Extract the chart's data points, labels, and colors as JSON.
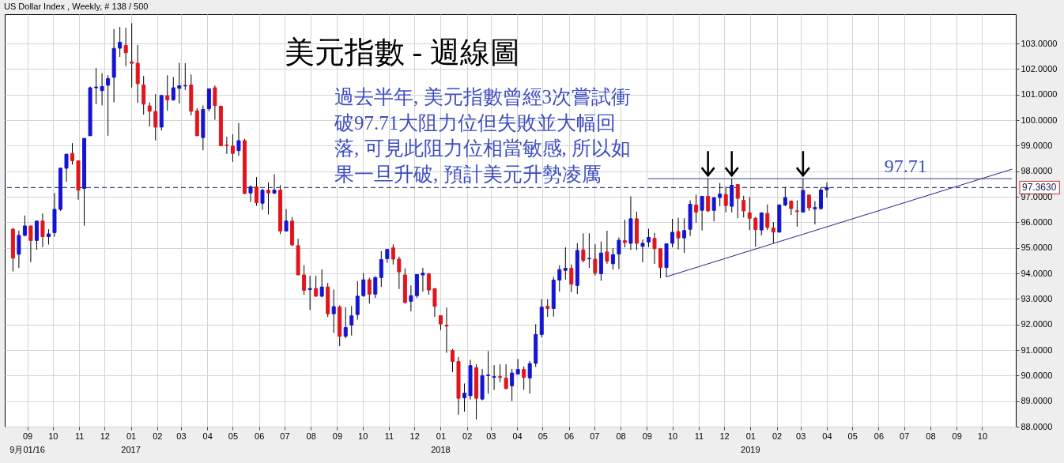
{
  "chart_data": {
    "type": "candlestick",
    "title": "美元指數 - 週線圖",
    "subtitle": "US Dollar Index , Weekly, # 138 / 500",
    "x": [
      "2016-08-15",
      "2016-08-22",
      "2016-08-29",
      "2016-09-05",
      "2016-09-12",
      "2016-09-19",
      "2016-09-26",
      "2016-10-03",
      "2016-10-10",
      "2016-10-17",
      "2016-10-24",
      "2016-10-31",
      "2016-11-07",
      "2016-11-14",
      "2016-11-21",
      "2016-11-28",
      "2016-12-05",
      "2016-12-12",
      "2016-12-19",
      "2016-12-26",
      "2017-01-02",
      "2017-01-09",
      "2017-01-16",
      "2017-01-23",
      "2017-01-30",
      "2017-02-06",
      "2017-02-13",
      "2017-02-20",
      "2017-02-27",
      "2017-03-06",
      "2017-03-13",
      "2017-03-20",
      "2017-03-27",
      "2017-04-03",
      "2017-04-10",
      "2017-04-17",
      "2017-04-24",
      "2017-05-01",
      "2017-05-08",
      "2017-05-15",
      "2017-05-22",
      "2017-05-29",
      "2017-06-05",
      "2017-06-12",
      "2017-06-19",
      "2017-06-26",
      "2017-07-03",
      "2017-07-10",
      "2017-07-17",
      "2017-07-24",
      "2017-07-31",
      "2017-08-07",
      "2017-08-14",
      "2017-08-21",
      "2017-08-28",
      "2017-09-04",
      "2017-09-11",
      "2017-09-18",
      "2017-09-25",
      "2017-10-02",
      "2017-10-09",
      "2017-10-16",
      "2017-10-23",
      "2017-10-30",
      "2017-11-06",
      "2017-11-13",
      "2017-11-20",
      "2017-11-27",
      "2017-12-04",
      "2017-12-11",
      "2017-12-18",
      "2017-12-25",
      "2018-01-01",
      "2018-01-08",
      "2018-01-15",
      "2018-01-22",
      "2018-01-29",
      "2018-02-05",
      "2018-02-12",
      "2018-02-19",
      "2018-02-26",
      "2018-03-05",
      "2018-03-12",
      "2018-03-19",
      "2018-03-26",
      "2018-04-02",
      "2018-04-09",
      "2018-04-16",
      "2018-04-23",
      "2018-04-30",
      "2018-05-07",
      "2018-05-14",
      "2018-05-21",
      "2018-05-28",
      "2018-06-04",
      "2018-06-11",
      "2018-06-18",
      "2018-06-25",
      "2018-07-02",
      "2018-07-09",
      "2018-07-16",
      "2018-07-23",
      "2018-07-30",
      "2018-08-06",
      "2018-08-13",
      "2018-08-20",
      "2018-08-27",
      "2018-09-03",
      "2018-09-10",
      "2018-09-17",
      "2018-09-24",
      "2018-10-01",
      "2018-10-08",
      "2018-10-15",
      "2018-10-22",
      "2018-10-29",
      "2018-11-05",
      "2018-11-12",
      "2018-11-19",
      "2018-11-26",
      "2018-12-03",
      "2018-12-10",
      "2018-12-17",
      "2018-12-24",
      "2018-12-31",
      "2019-01-07",
      "2019-01-14",
      "2019-01-21",
      "2019-01-28",
      "2019-02-04",
      "2019-02-11",
      "2019-02-18",
      "2019-02-25",
      "2019-03-04",
      "2019-03-11",
      "2019-03-18",
      "2019-03-25",
      "2019-04-01"
    ],
    "ohlc": [
      [
        95.73,
        95.78,
        94.08,
        94.6
      ],
      [
        94.75,
        95.68,
        94.21,
        95.49
      ],
      [
        95.49,
        96.27,
        95.45,
        95.86
      ],
      [
        95.86,
        95.86,
        94.44,
        95.29
      ],
      [
        95.29,
        96.07,
        94.93,
        96.05
      ],
      [
        96.05,
        96.35,
        95.03,
        95.44
      ],
      [
        95.44,
        95.73,
        95.13,
        95.55
      ],
      [
        95.6,
        97.15,
        95.44,
        96.51
      ],
      [
        96.51,
        98.14,
        96.45,
        98.12
      ],
      [
        98.12,
        98.67,
        97.59,
        98.67
      ],
      [
        98.7,
        99.1,
        98.26,
        98.41
      ],
      [
        98.41,
        98.41,
        96.89,
        97.26
      ],
      [
        97.33,
        99.29,
        95.87,
        99.29
      ],
      [
        99.39,
        101.32,
        99.39,
        101.27
      ],
      [
        101.27,
        102.04,
        100.63,
        101.3
      ],
      [
        101.16,
        101.84,
        100.58,
        101.32
      ],
      [
        101.37,
        101.76,
        99.39,
        101.63
      ],
      [
        101.68,
        103.57,
        100.7,
        102.81
      ],
      [
        102.82,
        103.65,
        102.48,
        103.05
      ],
      [
        102.93,
        103.62,
        102.12,
        102.64
      ],
      [
        102.28,
        103.8,
        101.28,
        102.23
      ],
      [
        102.23,
        102.95,
        100.68,
        101.43
      ],
      [
        101.38,
        101.73,
        100.22,
        100.63
      ],
      [
        100.56,
        100.7,
        99.75,
        100.35
      ],
      [
        100.34,
        101.02,
        99.21,
        99.73
      ],
      [
        99.73,
        100.97,
        99.6,
        100.97
      ],
      [
        100.96,
        101.76,
        100.37,
        100.8
      ],
      [
        100.8,
        101.69,
        100.76,
        101.27
      ],
      [
        101.25,
        102.25,
        100.66,
        101.35
      ],
      [
        101.34,
        102.23,
        101.18,
        101.36
      ],
      [
        101.38,
        101.79,
        100.19,
        100.35
      ],
      [
        100.37,
        100.47,
        99.39,
        99.39
      ],
      [
        99.32,
        100.58,
        98.82,
        100.42
      ],
      [
        100.45,
        101.23,
        100.35,
        101.23
      ],
      [
        101.27,
        101.36,
        100.02,
        100.57
      ],
      [
        100.55,
        100.55,
        99.0,
        99.0
      ],
      [
        99.03,
        99.35,
        98.68,
        99.01
      ],
      [
        98.99,
        99.45,
        98.37,
        98.7
      ],
      [
        98.81,
        99.89,
        98.61,
        99.2
      ],
      [
        99.2,
        99.27,
        97.1,
        97.13
      ],
      [
        97.15,
        97.46,
        96.8,
        97.39
      ],
      [
        97.39,
        97.77,
        96.65,
        96.77
      ],
      [
        96.75,
        97.31,
        96.49,
        97.26
      ],
      [
        97.26,
        97.57,
        96.31,
        97.15
      ],
      [
        97.15,
        97.88,
        97.1,
        97.26
      ],
      [
        97.26,
        97.46,
        95.54,
        95.66
      ],
      [
        95.66,
        96.52,
        95.64,
        96.05
      ],
      [
        96.05,
        96.21,
        95.07,
        95.12
      ],
      [
        95.09,
        95.36,
        93.94,
        93.94
      ],
      [
        93.94,
        94.32,
        93.16,
        93.34
      ],
      [
        93.37,
        93.91,
        92.57,
        93.41
      ],
      [
        93.41,
        93.91,
        93.08,
        93.11
      ],
      [
        93.11,
        94.16,
        93.06,
        93.47
      ],
      [
        93.47,
        93.63,
        92.29,
        92.42
      ],
      [
        92.42,
        93.37,
        91.67,
        92.7
      ],
      [
        92.68,
        92.75,
        91.15,
        91.54
      ],
      [
        91.54,
        92.68,
        91.46,
        91.88
      ],
      [
        91.98,
        92.72,
        91.57,
        92.34
      ],
      [
        92.39,
        93.7,
        92.19,
        93.11
      ],
      [
        93.13,
        94.01,
        93.08,
        93.75
      ],
      [
        93.75,
        93.83,
        92.82,
        93.19
      ],
      [
        93.19,
        93.89,
        93.04,
        93.84
      ],
      [
        93.84,
        94.87,
        93.47,
        94.54
      ],
      [
        94.58,
        94.94,
        94.42,
        94.94
      ],
      [
        95.0,
        95.14,
        94.35,
        94.56
      ],
      [
        94.56,
        94.66,
        93.39,
        94.06
      ],
      [
        93.94,
        94.2,
        92.82,
        92.86
      ],
      [
        92.91,
        93.53,
        92.52,
        93.13
      ],
      [
        93.13,
        93.96,
        93.04,
        93.96
      ],
      [
        93.94,
        94.22,
        93.29,
        94.01
      ],
      [
        93.99,
        94.01,
        93.17,
        93.35
      ],
      [
        93.4,
        93.43,
        92.3,
        92.71
      ],
      [
        92.35,
        92.35,
        91.78,
        92.02
      ],
      [
        91.97,
        92.66,
        90.89,
        91.94
      ],
      [
        90.98,
        91.04,
        90.14,
        90.55
      ],
      [
        90.55,
        90.73,
        88.47,
        89.11
      ],
      [
        89.13,
        89.69,
        88.59,
        89.31
      ],
      [
        89.21,
        90.62,
        89.06,
        90.39
      ],
      [
        90.31,
        90.44,
        88.28,
        89.11
      ],
      [
        89.08,
        90.26,
        89.03,
        90.0
      ],
      [
        90.0,
        90.96,
        89.29,
        90.02
      ],
      [
        89.93,
        90.41,
        89.44,
        89.96
      ],
      [
        89.96,
        90.44,
        89.74,
        89.93
      ],
      [
        89.9,
        90.44,
        89.47,
        89.49
      ],
      [
        89.6,
        90.26,
        89.0,
        90.1
      ],
      [
        90.06,
        90.65,
        90.06,
        90.24
      ],
      [
        90.24,
        90.36,
        89.44,
        89.93
      ],
      [
        89.91,
        90.57,
        89.29,
        90.47
      ],
      [
        90.48,
        92.01,
        90.34,
        91.61
      ],
      [
        91.61,
        92.99,
        91.5,
        92.68
      ],
      [
        92.71,
        92.99,
        92.3,
        92.63
      ],
      [
        92.63,
        93.86,
        92.31,
        93.74
      ],
      [
        93.74,
        94.32,
        93.29,
        94.15
      ],
      [
        94.12,
        95.02,
        93.76,
        94.2
      ],
      [
        94.2,
        94.35,
        93.27,
        93.58
      ],
      [
        93.53,
        95.18,
        93.19,
        94.9
      ],
      [
        94.92,
        95.57,
        94.43,
        94.51
      ],
      [
        94.57,
        95.57,
        94.22,
        94.59
      ],
      [
        94.56,
        95.15,
        93.92,
        94.02
      ],
      [
        93.99,
        95.25,
        93.71,
        94.8
      ],
      [
        94.84,
        95.67,
        94.38,
        94.48
      ],
      [
        94.38,
        94.99,
        94.15,
        94.74
      ],
      [
        94.76,
        95.41,
        94.17,
        95.3
      ],
      [
        95.28,
        96.1,
        95.02,
        95.21
      ],
      [
        95.18,
        97.02,
        94.92,
        96.14
      ],
      [
        96.14,
        96.42,
        94.92,
        95.18
      ],
      [
        95.06,
        95.33,
        94.43,
        95.18
      ],
      [
        95.23,
        95.75,
        95.03,
        95.41
      ],
      [
        95.37,
        95.59,
        94.37,
        94.97
      ],
      [
        94.97,
        94.97,
        93.82,
        94.23
      ],
      [
        94.23,
        95.16,
        93.87,
        95.16
      ],
      [
        95.18,
        96.14,
        95.02,
        95.61
      ],
      [
        95.64,
        96.18,
        94.94,
        95.39
      ],
      [
        95.39,
        96.16,
        94.8,
        95.68
      ],
      [
        95.73,
        96.86,
        95.47,
        96.71
      ],
      [
        96.68,
        97.09,
        95.99,
        96.4
      ],
      [
        96.47,
        97.02,
        95.68,
        97.02
      ],
      [
        97.02,
        97.71,
        96.4,
        96.45
      ],
      [
        96.47,
        96.99,
        96.04,
        96.97
      ],
      [
        96.97,
        97.54,
        96.63,
        97.11
      ],
      [
        97.09,
        97.4,
        96.39,
        96.66
      ],
      [
        96.63,
        97.71,
        96.39,
        97.45
      ],
      [
        97.48,
        97.5,
        96.16,
        96.94
      ],
      [
        96.86,
        97.04,
        96.19,
        96.45
      ],
      [
        96.37,
        96.99,
        95.7,
        96.16
      ],
      [
        96.16,
        96.21,
        95.05,
        95.72
      ],
      [
        95.7,
        96.39,
        95.49,
        96.37
      ],
      [
        96.35,
        96.7,
        95.7,
        95.8
      ],
      [
        95.78,
        96.01,
        95.18,
        95.62
      ],
      [
        95.62,
        96.71,
        95.59,
        96.68
      ],
      [
        96.68,
        97.38,
        96.63,
        96.97
      ],
      [
        96.83,
        96.86,
        96.29,
        96.54
      ],
      [
        96.45,
        96.86,
        95.83,
        96.42
      ],
      [
        96.4,
        97.71,
        96.4,
        97.25
      ],
      [
        97.07,
        97.07,
        96.45,
        96.57
      ],
      [
        96.53,
        96.83,
        95.92,
        96.58
      ],
      [
        96.54,
        97.37,
        96.49,
        97.27
      ],
      [
        97.28,
        97.56,
        96.97,
        97.363
      ]
    ],
    "colors": [
      "#e0161c",
      "#1414d2",
      "#1414d2",
      "#e0161c",
      "#1414d2",
      "#e0161c",
      "#1414d2",
      "#1414d2",
      "#1414d2",
      "#1414d2",
      "#e0161c",
      "#e0161c",
      "#1414d2",
      "#1414d2",
      "#1414d2",
      "#1414d2",
      "#1414d2",
      "#1414d2",
      "#1414d2",
      "#e0161c",
      "#e0161c",
      "#e0161c",
      "#e0161c",
      "#e0161c",
      "#e0161c",
      "#1414d2",
      "#e0161c",
      "#1414d2",
      "#1414d2",
      "#1414d2",
      "#e0161c",
      "#e0161c",
      "#1414d2",
      "#1414d2",
      "#e0161c",
      "#e0161c",
      "#e0161c",
      "#e0161c",
      "#1414d2",
      "#e0161c",
      "#1414d2",
      "#e0161c",
      "#1414d2",
      "#e0161c",
      "#1414d2",
      "#e0161c",
      "#1414d2",
      "#e0161c",
      "#e0161c",
      "#e0161c",
      "#1414d2",
      "#e0161c",
      "#1414d2",
      "#e0161c",
      "#1414d2",
      "#e0161c",
      "#1414d2",
      "#1414d2",
      "#1414d2",
      "#1414d2",
      "#e0161c",
      "#1414d2",
      "#1414d2",
      "#1414d2",
      "#e0161c",
      "#e0161c",
      "#e0161c",
      "#1414d2",
      "#1414d2",
      "#1414d2",
      "#e0161c",
      "#e0161c",
      "#e0161c",
      "#e0161c",
      "#e0161c",
      "#e0161c",
      "#1414d2",
      "#1414d2",
      "#e0161c",
      "#1414d2",
      "#1414d2",
      "#1414d2",
      "#e0161c",
      "#e0161c",
      "#1414d2",
      "#1414d2",
      "#e0161c",
      "#1414d2",
      "#1414d2",
      "#1414d2",
      "#e0161c",
      "#1414d2",
      "#1414d2",
      "#1414d2",
      "#e0161c",
      "#1414d2",
      "#e0161c",
      "#1414d2",
      "#e0161c",
      "#1414d2",
      "#e0161c",
      "#1414d2",
      "#1414d2",
      "#e0161c",
      "#1414d2",
      "#e0161c",
      "#1414d2",
      "#1414d2",
      "#e0161c",
      "#e0161c",
      "#1414d2",
      "#1414d2",
      "#e0161c",
      "#1414d2",
      "#1414d2",
      "#e0161c",
      "#1414d2",
      "#e0161c",
      "#1414d2",
      "#1414d2",
      "#e0161c",
      "#1414d2",
      "#e0161c",
      "#e0161c",
      "#e0161c",
      "#e0161c",
      "#1414d2",
      "#e0161c",
      "#e0161c",
      "#1414d2",
      "#1414d2",
      "#e0161c",
      "#e0161c",
      "#1414d2",
      "#e0161c",
      "#1414d2",
      "#1414d2",
      "#1414d2"
    ],
    "series": [
      {
        "type": "line",
        "x": [
          "2018-09-24",
          "2019-11-05"
        ],
        "values": [
          93.87,
          98.08
        ],
        "color": "#22228a"
      },
      {
        "type": "line",
        "x": [
          "2018-09-03",
          "2019-11-05"
        ],
        "values": [
          97.71,
          97.71
        ],
        "color": "#3a3a8c"
      }
    ],
    "xlim": [
      "2016-08-10",
      "2019-11-05"
    ],
    "ylim": [
      88,
      104.15
    ],
    "xticks": [
      {
        "value": "2016-09-01",
        "label": "09"
      },
      {
        "value": "2016-10-01",
        "label": "10"
      },
      {
        "value": "2016-11-01",
        "label": "11"
      },
      {
        "value": "2016-12-01",
        "label": "12"
      },
      {
        "value": "2017-01-01",
        "label": "01"
      },
      {
        "value": "2017-02-01",
        "label": "02"
      },
      {
        "value": "2017-03-01",
        "label": "03"
      },
      {
        "value": "2017-04-01",
        "label": "04"
      },
      {
        "value": "2017-05-01",
        "label": "05"
      },
      {
        "value": "2017-06-01",
        "label": "06"
      },
      {
        "value": "2017-07-01",
        "label": "07"
      },
      {
        "value": "2017-08-01",
        "label": "08"
      },
      {
        "value": "2017-09-01",
        "label": "09"
      },
      {
        "value": "2017-10-01",
        "label": "10"
      },
      {
        "value": "2017-11-01",
        "label": "11"
      },
      {
        "value": "2017-12-01",
        "label": "12"
      },
      {
        "value": "2018-01-01",
        "label": "01"
      },
      {
        "value": "2018-02-01",
        "label": "02"
      },
      {
        "value": "2018-03-01",
        "label": "03"
      },
      {
        "value": "2018-04-01",
        "label": "04"
      },
      {
        "value": "2018-05-01",
        "label": "05"
      },
      {
        "value": "2018-06-01",
        "label": "06"
      },
      {
        "value": "2018-07-01",
        "label": "07"
      },
      {
        "value": "2018-08-01",
        "label": "08"
      },
      {
        "value": "2018-09-01",
        "label": "09"
      },
      {
        "value": "2018-10-01",
        "label": "10"
      },
      {
        "value": "2018-11-01",
        "label": "11"
      },
      {
        "value": "2018-12-01",
        "label": "12"
      },
      {
        "value": "2019-01-01",
        "label": "01"
      },
      {
        "value": "2019-02-01",
        "label": "02"
      },
      {
        "value": "2019-03-01",
        "label": "03"
      },
      {
        "value": "2019-04-01",
        "label": "04"
      },
      {
        "value": "2019-05-01",
        "label": "05"
      },
      {
        "value": "2019-06-01",
        "label": "06"
      },
      {
        "value": "2019-07-01",
        "label": "07"
      },
      {
        "value": "2019-08-01",
        "label": "08"
      },
      {
        "value": "2019-09-01",
        "label": "09"
      },
      {
        "value": "2019-10-01",
        "label": "10"
      }
    ],
    "yticks": [
      {
        "value": 88,
        "label": "88.0000"
      },
      {
        "value": 89,
        "label": "89.0000"
      },
      {
        "value": 90,
        "label": "90.0000"
      },
      {
        "value": 91,
        "label": "91.0000"
      },
      {
        "value": 92,
        "label": "92.0000"
      },
      {
        "value": 93,
        "label": "93.0000"
      },
      {
        "value": 94,
        "label": "94.0000"
      },
      {
        "value": 95,
        "label": "95.0000"
      },
      {
        "value": 96,
        "label": "96.0000"
      },
      {
        "value": 97,
        "label": "97.0000"
      },
      {
        "value": 98,
        "label": "98.0000"
      },
      {
        "value": 99,
        "label": "99.0000"
      },
      {
        "value": 100,
        "label": "100.0000"
      },
      {
        "value": 101,
        "label": "101.0000"
      },
      {
        "value": 102,
        "label": "102.0000"
      },
      {
        "value": 103,
        "label": "103.0000"
      }
    ],
    "grid": true,
    "ref_lines": [
      {
        "axis": "y",
        "value": 97.363,
        "label": "97.3630",
        "color": "#1e1e6e",
        "line_style": "dashed"
      }
    ],
    "annotations": [
      "過去半年, 美元指數曾經3次嘗試衝",
      "破97.71大阻力位但失敗並大幅回",
      "落, 可見此阻力位相當敏感, 所以如",
      "果一旦升破, 預計美元升勢凌厲",
      {
        "text": "97.71",
        "x": "2019-07-03",
        "y": 97.71
      },
      "9月01/16",
      "2017",
      "2018",
      "2019"
    ]
  }
}
